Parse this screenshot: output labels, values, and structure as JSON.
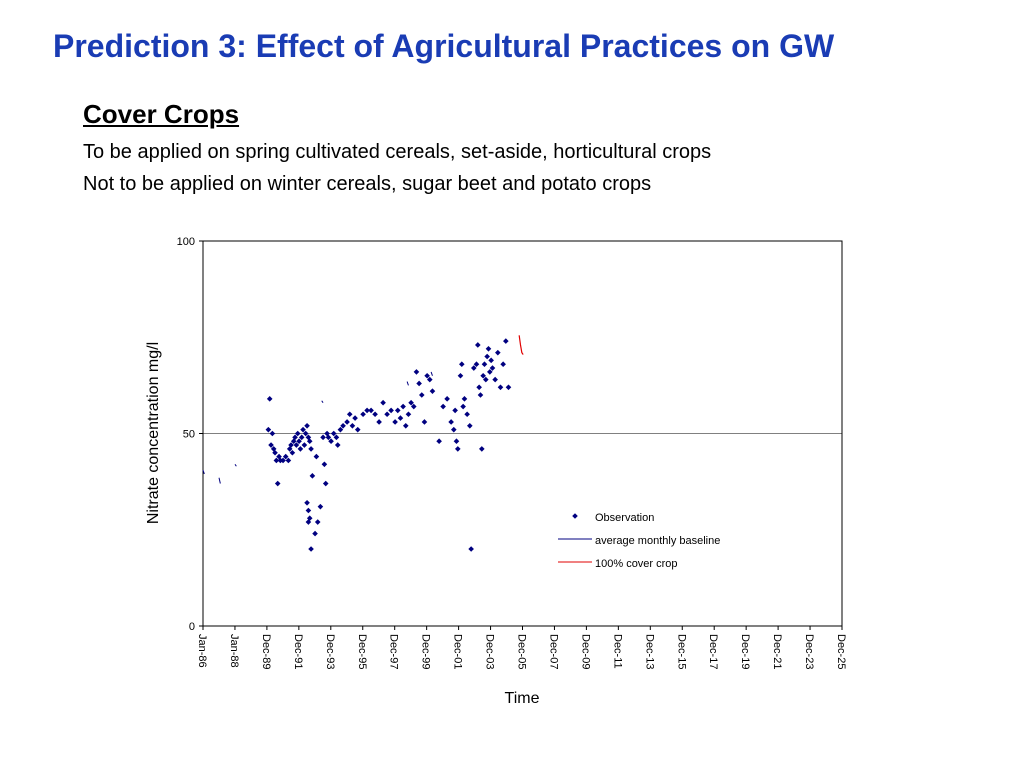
{
  "slide": {
    "title": "Prediction 3: Effect of Agricultural Practices on GW",
    "title_color": "#1a3cb4",
    "subtitle": "Cover Crops",
    "lines": [
      "To be applied on spring cultivated cereals, set-aside, horticultural crops",
      "Not to be applied on winter cereals, sugar beet and potato crops"
    ]
  },
  "chart_data": {
    "type": "scatter",
    "xlabel": "Time",
    "ylabel": "Nitrate concentration mg/l",
    "ylim": [
      0,
      100
    ],
    "y_ticks": [
      0,
      50,
      100
    ],
    "xlim": [
      "1986-01",
      "2025-12"
    ],
    "x_ticks": [
      "Jan-86",
      "Jan-88",
      "Dec-89",
      "Dec-91",
      "Dec-93",
      "Dec-95",
      "Dec-97",
      "Dec-99",
      "Dec-01",
      "Dec-03",
      "Dec-05",
      "Dec-07",
      "Dec-09",
      "Dec-11",
      "Dec-13",
      "Dec-15",
      "Dec-17",
      "Dec-19",
      "Dec-21",
      "Dec-23",
      "Dec-25"
    ],
    "gridlines_y": [
      50
    ],
    "legend_position": "lower-right",
    "colors": {
      "observation": "#000080",
      "baseline": "#000080",
      "cover_crop": "#e00000",
      "grid": "#808080"
    },
    "series": [
      {
        "name": "Observation",
        "marker": "diamond",
        "points": [
          {
            "x": "1990-02",
            "y": 51
          },
          {
            "x": "1990-03",
            "y": 59
          },
          {
            "x": "1990-04",
            "y": 47
          },
          {
            "x": "1990-05",
            "y": 50
          },
          {
            "x": "1990-06",
            "y": 46
          },
          {
            "x": "1990-07",
            "y": 45
          },
          {
            "x": "1990-08",
            "y": 43
          },
          {
            "x": "1990-09",
            "y": 37
          },
          {
            "x": "1990-10",
            "y": 44
          },
          {
            "x": "1990-11",
            "y": 43
          },
          {
            "x": "1991-01",
            "y": 43
          },
          {
            "x": "1991-03",
            "y": 44
          },
          {
            "x": "1991-05",
            "y": 43
          },
          {
            "x": "1991-06",
            "y": 46
          },
          {
            "x": "1991-07",
            "y": 47
          },
          {
            "x": "1991-08",
            "y": 45
          },
          {
            "x": "1991-09",
            "y": 48
          },
          {
            "x": "1991-10",
            "y": 49
          },
          {
            "x": "1991-11",
            "y": 47
          },
          {
            "x": "1991-12",
            "y": 50
          },
          {
            "x": "1992-01",
            "y": 48
          },
          {
            "x": "1992-02",
            "y": 46
          },
          {
            "x": "1992-03",
            "y": 49
          },
          {
            "x": "1992-04",
            "y": 51
          },
          {
            "x": "1992-05",
            "y": 47
          },
          {
            "x": "1992-06",
            "y": 50
          },
          {
            "x": "1992-07",
            "y": 52
          },
          {
            "x": "1992-08",
            "y": 49
          },
          {
            "x": "1992-09",
            "y": 48
          },
          {
            "x": "1992-10",
            "y": 46
          },
          {
            "x": "1992-07",
            "y": 32
          },
          {
            "x": "1992-08",
            "y": 30
          },
          {
            "x": "1992-09",
            "y": 28
          },
          {
            "x": "1992-08",
            "y": 27
          },
          {
            "x": "1992-10",
            "y": 20
          },
          {
            "x": "1992-11",
            "y": 39
          },
          {
            "x": "1993-01",
            "y": 24
          },
          {
            "x": "1993-02",
            "y": 44
          },
          {
            "x": "1993-03",
            "y": 27
          },
          {
            "x": "1993-05",
            "y": 31
          },
          {
            "x": "1993-07",
            "y": 49
          },
          {
            "x": "1993-08",
            "y": 42
          },
          {
            "x": "1993-09",
            "y": 37
          },
          {
            "x": "1993-10",
            "y": 50
          },
          {
            "x": "1993-11",
            "y": 49
          },
          {
            "x": "1994-01",
            "y": 48
          },
          {
            "x": "1994-03",
            "y": 50
          },
          {
            "x": "1994-05",
            "y": 49
          },
          {
            "x": "1994-06",
            "y": 47
          },
          {
            "x": "1994-08",
            "y": 51
          },
          {
            "x": "1994-10",
            "y": 52
          },
          {
            "x": "1995-01",
            "y": 53
          },
          {
            "x": "1995-03",
            "y": 55
          },
          {
            "x": "1995-05",
            "y": 52
          },
          {
            "x": "1995-07",
            "y": 54
          },
          {
            "x": "1995-09",
            "y": 51
          },
          {
            "x": "1996-01",
            "y": 55
          },
          {
            "x": "1996-04",
            "y": 56
          },
          {
            "x": "1996-07",
            "y": 56
          },
          {
            "x": "1996-10",
            "y": 55
          },
          {
            "x": "1997-01",
            "y": 53
          },
          {
            "x": "1997-04",
            "y": 58
          },
          {
            "x": "1997-07",
            "y": 55
          },
          {
            "x": "1997-10",
            "y": 56
          },
          {
            "x": "1998-01",
            "y": 53
          },
          {
            "x": "1998-03",
            "y": 56
          },
          {
            "x": "1998-05",
            "y": 54
          },
          {
            "x": "1998-07",
            "y": 57
          },
          {
            "x": "1998-09",
            "y": 52
          },
          {
            "x": "1998-11",
            "y": 55
          },
          {
            "x": "1999-01",
            "y": 58
          },
          {
            "x": "1999-03",
            "y": 57
          },
          {
            "x": "1999-05",
            "y": 66
          },
          {
            "x": "1999-07",
            "y": 63
          },
          {
            "x": "1999-09",
            "y": 60
          },
          {
            "x": "1999-11",
            "y": 53
          },
          {
            "x": "2000-01",
            "y": 65
          },
          {
            "x": "2000-03",
            "y": 64
          },
          {
            "x": "2000-05",
            "y": 61
          },
          {
            "x": "2000-10",
            "y": 48
          },
          {
            "x": "2001-01",
            "y": 57
          },
          {
            "x": "2001-04",
            "y": 59
          },
          {
            "x": "2001-07",
            "y": 53
          },
          {
            "x": "2001-09",
            "y": 51
          },
          {
            "x": "2001-10",
            "y": 56
          },
          {
            "x": "2001-11",
            "y": 48
          },
          {
            "x": "2001-12",
            "y": 46
          },
          {
            "x": "2002-02",
            "y": 65
          },
          {
            "x": "2002-03",
            "y": 68
          },
          {
            "x": "2002-04",
            "y": 57
          },
          {
            "x": "2002-05",
            "y": 59
          },
          {
            "x": "2002-07",
            "y": 55
          },
          {
            "x": "2002-09",
            "y": 52
          },
          {
            "x": "2002-10",
            "y": 20
          },
          {
            "x": "2002-12",
            "y": 67
          },
          {
            "x": "2003-02",
            "y": 68
          },
          {
            "x": "2003-03",
            "y": 73
          },
          {
            "x": "2003-04",
            "y": 62
          },
          {
            "x": "2003-05",
            "y": 60
          },
          {
            "x": "2003-06",
            "y": 46
          },
          {
            "x": "2003-07",
            "y": 65
          },
          {
            "x": "2003-08",
            "y": 68
          },
          {
            "x": "2003-09",
            "y": 64
          },
          {
            "x": "2003-10",
            "y": 70
          },
          {
            "x": "2003-11",
            "y": 72
          },
          {
            "x": "2003-12",
            "y": 66
          },
          {
            "x": "2004-01",
            "y": 69
          },
          {
            "x": "2004-02",
            "y": 67
          },
          {
            "x": "2004-04",
            "y": 64
          },
          {
            "x": "2004-06",
            "y": 71
          },
          {
            "x": "2004-08",
            "y": 62
          },
          {
            "x": "2004-10",
            "y": 68
          },
          {
            "x": "2004-12",
            "y": 74
          },
          {
            "x": "2005-02",
            "y": 62
          }
        ]
      },
      {
        "name": "average monthly baseline",
        "line": "solid",
        "segments": [
          [
            {
              "x": "1986-01",
              "y": 40.5
            },
            {
              "x": "1986-02",
              "y": 39.5
            }
          ],
          [
            {
              "x": "1987-01",
              "y": 38.5
            },
            {
              "x": "1987-02",
              "y": 37
            }
          ],
          [
            {
              "x": "1988-01",
              "y": 42
            },
            {
              "x": "1988-02",
              "y": 41.5
            }
          ],
          [
            {
              "x": "1993-06",
              "y": 58.5
            },
            {
              "x": "1993-07",
              "y": 58
            }
          ],
          [
            {
              "x": "1998-10",
              "y": 63.5
            },
            {
              "x": "1998-11",
              "y": 62.5
            }
          ],
          [
            {
              "x": "2000-04",
              "y": 66
            },
            {
              "x": "2000-05",
              "y": 65
            }
          ]
        ]
      },
      {
        "name": "100% cover crop",
        "line": "solid",
        "points": [
          {
            "x": "2005-10",
            "y": 75.5
          },
          {
            "x": "2005-11",
            "y": 73
          },
          {
            "x": "2005-12",
            "y": 71
          },
          {
            "x": "2006-01",
            "y": 70.5
          }
        ]
      }
    ]
  }
}
